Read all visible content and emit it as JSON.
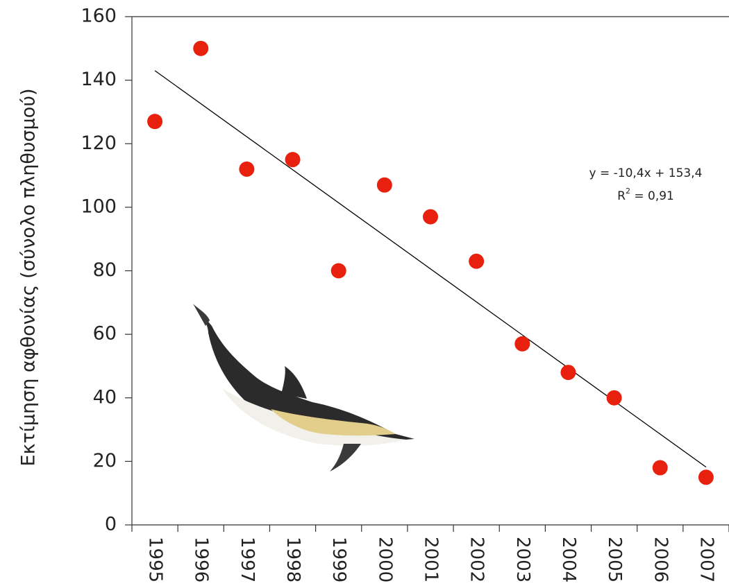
{
  "chart_data": {
    "type": "scatter",
    "y_label": "Εκτίμηση αφθονίας (σύνολο πληθυσμού)",
    "categories": [
      "1995",
      "1996",
      "1997",
      "1998",
      "1999",
      "2000",
      "2001",
      "2002",
      "2003",
      "2004",
      "2005",
      "2006",
      "2007"
    ],
    "values": [
      127,
      150,
      112,
      115,
      80,
      107,
      97,
      83,
      57,
      48,
      40,
      18,
      15
    ],
    "color": "#e8210e",
    "ylim": [
      0,
      160
    ],
    "yticks": [
      0,
      20,
      40,
      60,
      80,
      100,
      120,
      140,
      160
    ],
    "trendline": {
      "slope": -10.4,
      "intercept": 153.4,
      "color": "#000000",
      "label": "y = -10,4x + 153,4",
      "r2_label": {
        "base": "R",
        "exponent": "2",
        "text": " = 0,91"
      }
    }
  }
}
